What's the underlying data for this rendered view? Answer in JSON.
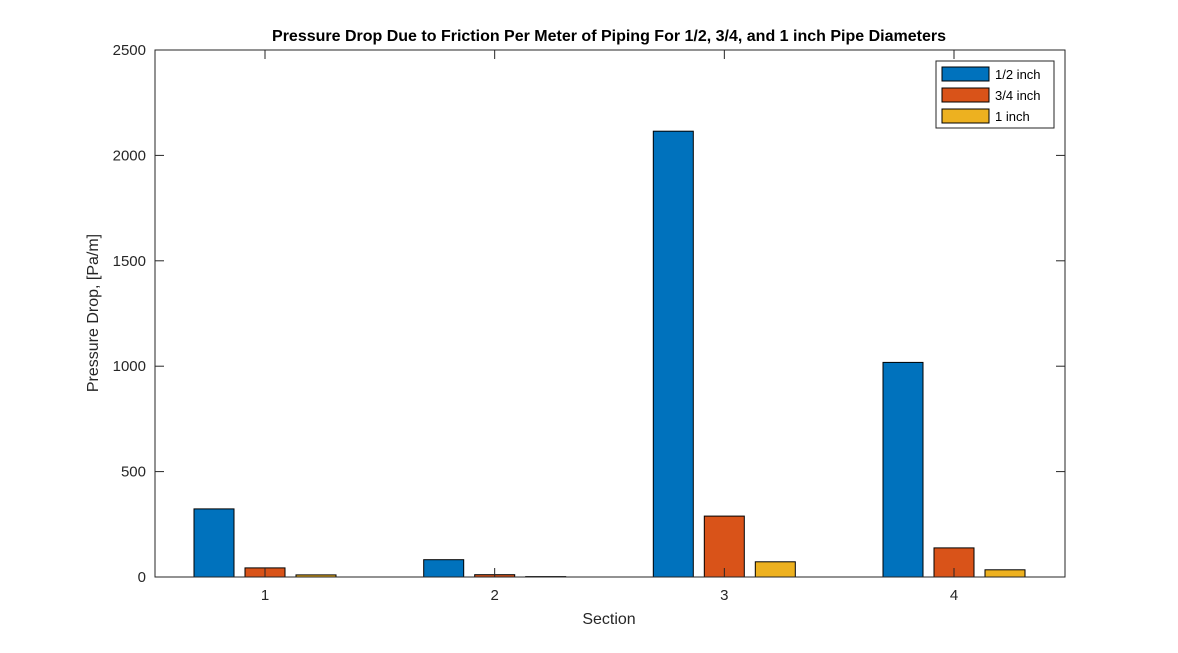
{
  "chart_data": {
    "type": "bar",
    "title": "Pressure Drop Due to Friction Per Meter of Piping For 1/2, 3/4, and 1 inch Pipe Diameters",
    "xlabel": "Section",
    "ylabel": "Pressure Drop, [Pa/m]",
    "categories": [
      "1",
      "2",
      "3",
      "4"
    ],
    "series": [
      {
        "name": "1/2 inch",
        "values": [
          323,
          82,
          2115,
          1018
        ],
        "color": "#0072BD"
      },
      {
        "name": "3/4 inch",
        "values": [
          43,
          11,
          289,
          138
        ],
        "color": "#D95319"
      },
      {
        "name": "1 inch",
        "values": [
          10,
          2,
          72,
          34
        ],
        "color": "#EDB120"
      }
    ],
    "ylim": [
      0,
      2500
    ],
    "yticks": [
      0,
      500,
      1000,
      1500,
      2000,
      2500
    ],
    "grid": false,
    "legend_position": "top-right"
  }
}
